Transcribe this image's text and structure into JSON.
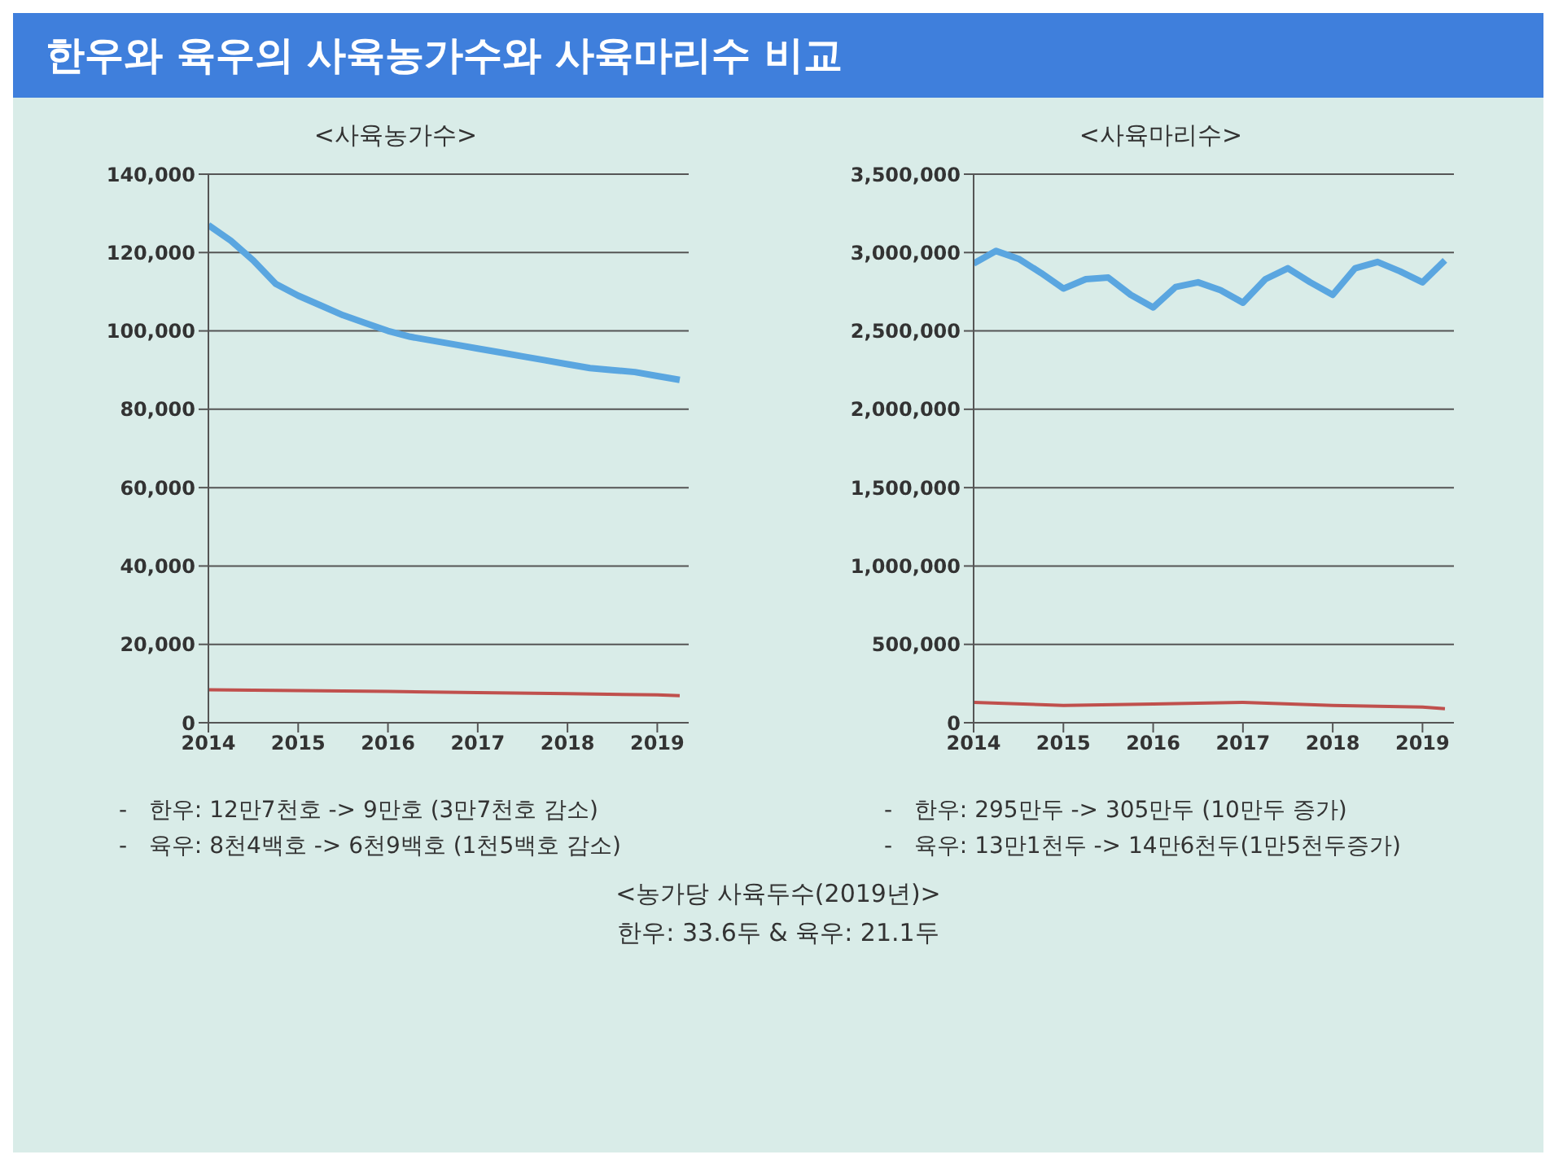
{
  "chart_data": [
    {
      "type": "other",
      "title": "한우와 육우의 사육농가수와 사육마리수 비교"
    },
    {
      "type": "line",
      "title": "<사육농가수>",
      "xlim": [
        2014,
        2019.35
      ],
      "xticks": [
        2014,
        2015,
        2016,
        2017,
        2018,
        2019
      ],
      "ylim": [
        0,
        140000
      ],
      "yticks": [
        0,
        {
          "value": 20000,
          "label": "20,000"
        },
        {
          "value": 40000,
          "label": "40,000"
        },
        {
          "value": 60000,
          "label": "60,000"
        },
        {
          "value": 80000,
          "label": "80,000"
        },
        {
          "value": 100000,
          "label": "100,000"
        },
        {
          "value": 120000,
          "label": "120,000"
        },
        {
          "value": 140000,
          "label": "140,000"
        }
      ],
      "grid": "y",
      "annotations": [
        "-   한우: 12만7천호 -> 9만호 (3만7천호 감소)",
        "-   육우: 8천4백호 -> 6천9백호 (1천5백호 감소)"
      ],
      "series": [
        {
          "color": "#5aa6e0",
          "x": [
            2014,
            2014.25,
            2014.5,
            2014.75,
            2015,
            2015.25,
            2015.5,
            2015.75,
            2016,
            2016.25,
            2016.5,
            2016.75,
            2017,
            2017.25,
            2017.5,
            2017.75,
            2018,
            2018.25,
            2018.5,
            2018.75,
            2019,
            2019.25
          ],
          "values": [
            127000,
            123000,
            118000,
            112000,
            109000,
            106500,
            104000,
            102000,
            100000,
            98500,
            97500,
            96500,
            95500,
            94500,
            93500,
            92500,
            91500,
            90500,
            90000,
            89500,
            88500,
            87500
          ]
        },
        {
          "color": "#c0504d",
          "x": [
            2014,
            2015,
            2016,
            2017,
            2018,
            2019,
            2019.25
          ],
          "values": [
            8400,
            8200,
            8000,
            7700,
            7400,
            7100,
            6900
          ]
        }
      ]
    },
    {
      "type": "line",
      "title": "<사육마리수>",
      "xlim": [
        2014,
        2019.35
      ],
      "xticks": [
        2014,
        2015,
        2016,
        2017,
        2018,
        2019
      ],
      "ylim": [
        0,
        3500000
      ],
      "yticks": [
        0,
        {
          "value": 500000,
          "label": "500,000"
        },
        {
          "value": 1000000,
          "label": "1,000,000"
        },
        {
          "value": 1500000,
          "label": "1,500,000"
        },
        {
          "value": 2000000,
          "label": "2,000,000"
        },
        {
          "value": 2500000,
          "label": "2,500,000"
        },
        {
          "value": 3000000,
          "label": "3,000,000"
        },
        {
          "value": 3500000,
          "label": "3,500,000"
        }
      ],
      "grid": "y",
      "annotations": [
        "-   한우: 295만두 -> 305만두 (10만두 증가)",
        "-   육우: 13만1천두 -> 14만6천두(1만5천두증가)"
      ],
      "series": [
        {
          "color": "#5aa6e0",
          "x": [
            2014,
            2014.25,
            2014.5,
            2014.75,
            2015,
            2015.25,
            2015.5,
            2015.75,
            2016,
            2016.25,
            2016.5,
            2016.75,
            2017,
            2017.25,
            2017.5,
            2017.75,
            2018,
            2018.25,
            2018.5,
            2018.75,
            2019,
            2019.25
          ],
          "values": [
            2930000,
            3010000,
            2960000,
            2870000,
            2770000,
            2830000,
            2840000,
            2730000,
            2650000,
            2780000,
            2810000,
            2760000,
            2680000,
            2830000,
            2900000,
            2810000,
            2730000,
            2900000,
            2940000,
            2880000,
            2810000,
            2950000
          ]
        },
        {
          "color": "#c0504d",
          "x": [
            2014,
            2015,
            2016,
            2017,
            2018,
            2019,
            2019.25
          ],
          "values": [
            130000,
            110000,
            120000,
            130000,
            110000,
            100000,
            90000
          ]
        }
      ]
    },
    {
      "type": "other",
      "title": "<농가당 사육두수(2019년)>",
      "annotations": [
        "한우: 33.6두    &    육우: 21.1두"
      ]
    }
  ]
}
